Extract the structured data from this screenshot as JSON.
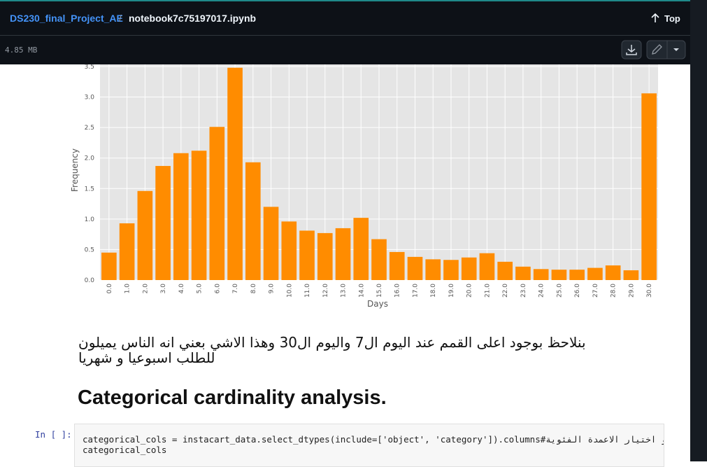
{
  "header": {
    "repo": "DS230_final_Project_AE",
    "separator": "/",
    "file": "notebook7c75197017.ipynb",
    "top": "Top",
    "size": "4.85 MB"
  },
  "chart_data": {
    "type": "bar",
    "xlabel": "Days",
    "ylabel": "Frequency",
    "color": "#ff8c00",
    "grid": true,
    "categories": [
      "0.0",
      "1.0",
      "2.0",
      "3.0",
      "4.0",
      "5.0",
      "6.0",
      "7.0",
      "8.0",
      "9.0",
      "10.0",
      "11.0",
      "12.0",
      "13.0",
      "14.0",
      "15.0",
      "16.0",
      "17.0",
      "18.0",
      "19.0",
      "20.0",
      "21.0",
      "22.0",
      "23.0",
      "24.0",
      "25.0",
      "26.0",
      "27.0",
      "28.0",
      "29.0",
      "30.0"
    ],
    "values": [
      0.45,
      0.93,
      1.46,
      1.87,
      2.08,
      2.12,
      2.51,
      3.48,
      1.93,
      1.2,
      0.96,
      0.81,
      0.77,
      0.85,
      1.02,
      0.67,
      0.46,
      0.38,
      0.34,
      0.33,
      0.37,
      0.44,
      0.3,
      0.22,
      0.18,
      0.17,
      0.17,
      0.2,
      0.24,
      0.16,
      3.06
    ],
    "ylim": [
      0,
      3.5
    ],
    "yticks": [
      {
        "value": 0,
        "label": "0.0"
      },
      {
        "value": 0.5,
        "label": "0.5"
      },
      {
        "value": 1,
        "label": "1.0"
      },
      {
        "value": 1.5,
        "label": "1.5"
      },
      {
        "value": 2,
        "label": "2.0"
      },
      {
        "value": 2.5,
        "label": "2.5"
      },
      {
        "value": 3,
        "label": "3.0"
      },
      {
        "value": 3.5,
        "label": "3.5"
      }
    ]
  },
  "markdown": {
    "text": "بنلاحظ بوجود اعلى القمم عند اليوم ال7 واليوم ال30 وهذا الاشي بعني انه الناس يميلون للطلب اسبوعيا و شهريا",
    "heading": "Categorical cardinality analysis."
  },
  "code_cell": {
    "prompt": "In [ ]:",
    "lines": [
      "categorical_cols = instacart_data.select_dtypes(include=['object', 'category']).columns#على فلترة او اختيار الاعمدة الفئوية",
      "categorical_cols"
    ]
  }
}
